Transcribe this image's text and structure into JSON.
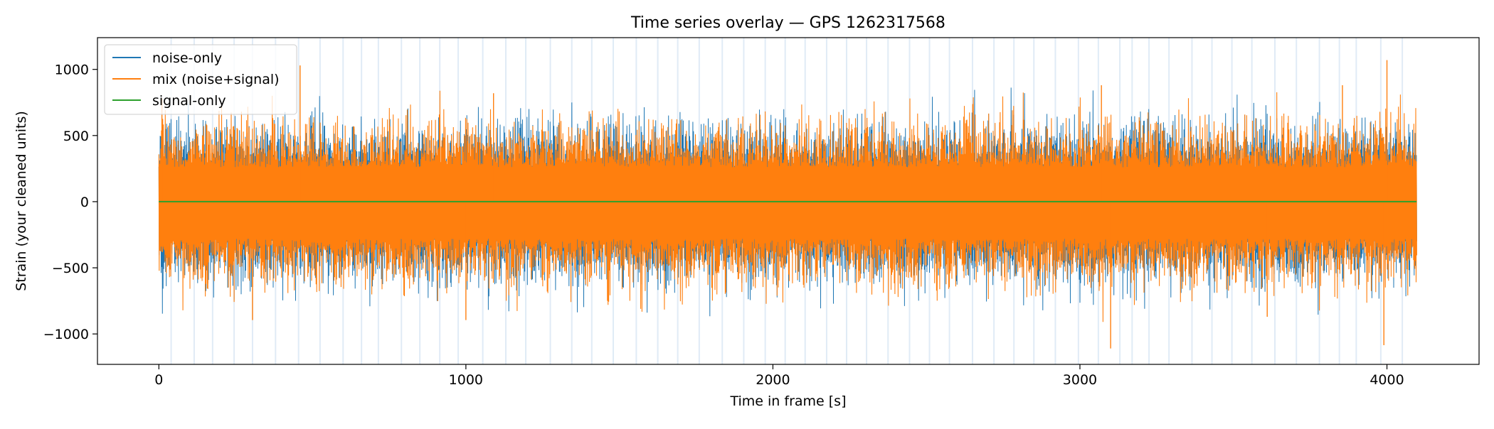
{
  "chart_data": {
    "type": "line",
    "title": "Time series overlay — GPS 1262317568",
    "xlabel": "Time in frame [s]",
    "ylabel": "Strain (your cleaned units)",
    "xlim": [
      -200,
      4300
    ],
    "ylim": [
      -1230,
      1240
    ],
    "x_ticks": [
      0,
      1000,
      2000,
      3000,
      4000
    ],
    "x_tick_labels": [
      "0",
      "1000",
      "2000",
      "3000",
      "4000"
    ],
    "y_ticks": [
      -1000,
      -500,
      0,
      500,
      1000
    ],
    "y_tick_labels": [
      "−1000",
      "−500",
      "0",
      "500",
      "1000"
    ],
    "grid": false,
    "legend_position": "top-left",
    "x_range": [
      0,
      4096
    ],
    "series": [
      {
        "name": "noise-only",
        "color": "#1f77b4",
        "description_values": {
          "typical_min": -500,
          "typical_max": 450,
          "typical_amplitude": 250
        }
      },
      {
        "name": "mix (noise+signal)",
        "color": "#ff7f0e",
        "description_values": {
          "typical_min": -520,
          "typical_max": 460,
          "typical_amplitude": 250
        },
        "extremes": [
          {
            "x": 460,
            "y": 1030
          },
          {
            "x": 4000,
            "y": 1070
          },
          {
            "x": 3100,
            "y": -1110
          },
          {
            "x": 3990,
            "y": -1085
          },
          {
            "x": 1000,
            "y": -895
          },
          {
            "x": 305,
            "y": -895
          },
          {
            "x": 10,
            "y": 780
          },
          {
            "x": 1090,
            "y": 820
          },
          {
            "x": 3070,
            "y": 880
          },
          {
            "x": 3855,
            "y": 880
          },
          {
            "x": 3610,
            "y": -870
          }
        ]
      },
      {
        "name": "signal-only",
        "color": "#2ca02c",
        "values_constant": 0
      }
    ],
    "marker_lines": {
      "color": "#c6dbef",
      "positions": [
        40,
        115,
        175,
        245,
        305,
        380,
        455,
        525,
        600,
        660,
        715,
        790,
        850,
        915,
        975,
        1055,
        1130,
        1195,
        1275,
        1345,
        1410,
        1480,
        1555,
        1625,
        1690,
        1760,
        1835,
        1905,
        1975,
        2040,
        2105,
        2175,
        2240,
        2305,
        2375,
        2445,
        2510,
        2575,
        2650,
        2720,
        2785,
        2850,
        2920,
        2995,
        3060,
        3130,
        3170,
        3225,
        3290,
        3365,
        3430,
        3495,
        3560,
        3635,
        3705,
        3780,
        3845,
        3900,
        3980,
        4050
      ]
    }
  }
}
